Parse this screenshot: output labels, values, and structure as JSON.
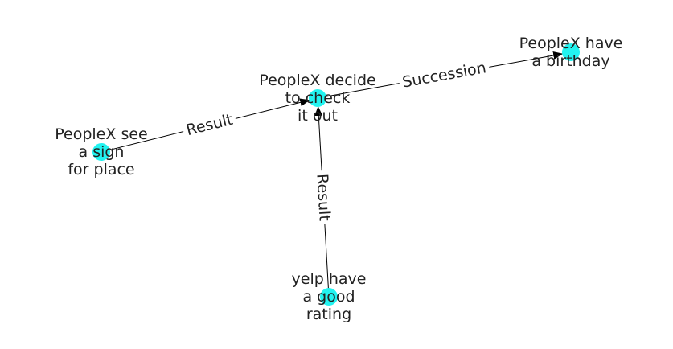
{
  "graph": {
    "nodes": [
      {
        "id": "n_decide",
        "lines": [
          "PeopleX decide",
          "to check",
          "it out"
        ]
      },
      {
        "id": "n_birthday",
        "lines": [
          "PeopleX have",
          "a birthday"
        ]
      },
      {
        "id": "n_sign",
        "lines": [
          "PeopleX see",
          "a sign",
          "for place"
        ]
      },
      {
        "id": "n_yelp",
        "lines": [
          "yelp have",
          "a good",
          "rating"
        ]
      }
    ],
    "edges": [
      {
        "id": "e_sign_decide",
        "source": "n_sign",
        "target": "n_decide",
        "label": "Result"
      },
      {
        "id": "e_decide_birthday",
        "source": "n_decide",
        "target": "n_birthday",
        "label": "Succession"
      },
      {
        "id": "e_yelp_decide",
        "source": "n_yelp",
        "target": "n_decide",
        "label": "Result"
      }
    ],
    "node_color": "#22f3f0",
    "edge_color": "#000000"
  }
}
